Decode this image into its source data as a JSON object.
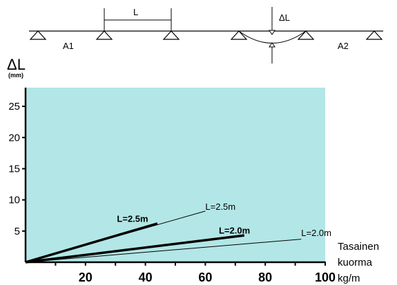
{
  "diagram": {
    "span_label": "L",
    "deflection_label": "ΔL",
    "left_label": "A1",
    "right_label": "A2"
  },
  "chart_data": {
    "type": "line",
    "title": "",
    "ylabel": "ΔL",
    "ylabel_unit": "(mm)",
    "xlabel_lines": [
      "Tasainen",
      "kuorma",
      "kg/m"
    ],
    "xlim": [
      0,
      100
    ],
    "ylim": [
      0,
      28
    ],
    "x_ticks": [
      20,
      40,
      60,
      80,
      100
    ],
    "y_ticks": [
      5,
      10,
      15,
      20,
      25
    ],
    "background": "#b3e6e6",
    "grid": false,
    "series": [
      {
        "name": "L=2.5m",
        "style": "bold",
        "x": [
          0,
          44
        ],
        "y": [
          0,
          6.2
        ],
        "label_at": [
          40,
          6.5
        ]
      },
      {
        "name": "L=2.5m",
        "style": "thin",
        "x": [
          0,
          60
        ],
        "y": [
          0,
          8.2
        ],
        "label_at": [
          60,
          8.4
        ]
      },
      {
        "name": "L=2.0m",
        "style": "bold",
        "x": [
          0,
          73
        ],
        "y": [
          0,
          4.3
        ],
        "label_at": [
          74,
          4.6
        ]
      },
      {
        "name": "L=2.0m",
        "style": "thin",
        "x": [
          0,
          92
        ],
        "y": [
          0,
          3.7
        ],
        "label_at": [
          92,
          4.2
        ]
      }
    ]
  }
}
